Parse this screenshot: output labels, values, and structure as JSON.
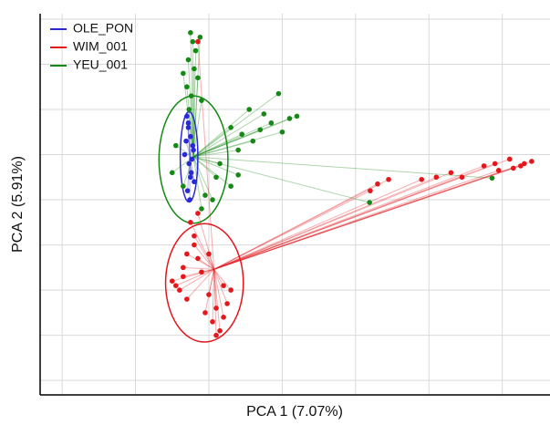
{
  "chart_data": {
    "type": "scatter",
    "x_label": "PCA 1 (7.07%)",
    "y_label": "PCA 2 (5.91%)",
    "xlim": [
      -2.3,
      4.65
    ],
    "ylim": [
      -4.32,
      4.12
    ],
    "xticks": [
      -2,
      -1,
      0,
      1,
      2,
      3,
      4
    ],
    "yticks": [
      -4,
      -3,
      -2,
      -1,
      0,
      1,
      2,
      3,
      4
    ],
    "grid": true,
    "legend": "top-left",
    "series": [
      {
        "name": "OLE_PON",
        "color": "#2a2ad4",
        "centroid": [
          -0.26,
          0.99
        ],
        "ellipse": {
          "cx": -0.27,
          "cy": 0.95,
          "rx": 0.12,
          "ry": 1.0
        },
        "x": [
          -0.3,
          -0.28,
          -0.25,
          -0.22,
          -0.33,
          -0.27,
          -0.24,
          -0.2,
          -0.29,
          -0.26,
          -0.31,
          -0.23,
          -0.28,
          -0.25,
          -0.21
        ],
        "values": [
          1.85,
          1.6,
          1.4,
          1.2,
          1.0,
          0.8,
          0.6,
          0.4,
          0.2,
          0.0,
          1.3,
          0.9,
          1.7,
          0.5,
          1.1
        ]
      },
      {
        "name": "WIM_001",
        "color": "#e3181c",
        "centroid": [
          0.07,
          -1.54
        ],
        "ellipse": {
          "cx": -0.06,
          "cy": -1.84,
          "rx": 0.53,
          "ry": 1.31
        },
        "x": [
          -0.5,
          -0.45,
          -0.35,
          -0.3,
          -0.2,
          -0.25,
          -0.15,
          -0.2,
          -0.4,
          -0.1,
          0.0,
          0.1,
          0.2,
          0.15,
          0.05,
          0.25,
          -0.05,
          0.3,
          -0.3,
          0.1,
          -0.15,
          -0.35,
          0.2,
          0.0,
          2.2,
          2.3,
          2.45,
          2.9,
          3.1,
          3.3,
          3.45,
          3.75,
          3.9,
          4.1,
          4.25,
          4.3,
          4.4,
          4.15,
          3.95,
          -0.15
        ],
        "values": [
          -1.8,
          -1.9,
          -1.5,
          -1.2,
          -0.8,
          -0.5,
          -0.3,
          -1.0,
          -2.0,
          -1.6,
          -2.1,
          -2.4,
          -2.6,
          -2.9,
          -2.7,
          -2.3,
          -2.5,
          -2.0,
          -2.2,
          -3.0,
          -1.3,
          -1.7,
          -1.9,
          -1.2,
          0.2,
          0.35,
          0.45,
          0.45,
          0.5,
          0.6,
          0.5,
          0.75,
          0.8,
          0.9,
          0.75,
          0.8,
          0.85,
          0.7,
          0.65,
          3.5
        ]
      },
      {
        "name": "YEU_001",
        "color": "#148a14",
        "centroid": [
          -0.21,
          0.95
        ],
        "ellipse": {
          "cx": -0.21,
          "cy": 0.89,
          "rx": 0.47,
          "ry": 1.41
        },
        "x": [
          -0.25,
          -0.22,
          -0.18,
          -0.28,
          -0.2,
          -0.15,
          -0.3,
          -0.24,
          -0.12,
          -0.35,
          -0.1,
          -0.27,
          0.95,
          1.2,
          1.1,
          0.85,
          0.7,
          0.6,
          0.45,
          0.4,
          1.0,
          0.3,
          0.75,
          0.55,
          0.1,
          0.3,
          -0.05,
          0.15,
          -0.5,
          -0.45,
          -0.35,
          0.05,
          -0.1,
          0.4,
          2.19,
          3.86
        ],
        "values": [
          3.7,
          3.5,
          3.3,
          3.1,
          2.9,
          2.7,
          2.5,
          2.3,
          3.6,
          2.8,
          2.2,
          2.0,
          2.35,
          1.85,
          1.8,
          1.7,
          1.55,
          1.3,
          1.45,
          1.1,
          1.5,
          1.6,
          1.9,
          2.0,
          0.5,
          0.3,
          0.1,
          0.8,
          0.6,
          1.2,
          0.3,
          0.0,
          -0.2,
          0.55,
          -0.06,
          0.48
        ]
      }
    ]
  }
}
